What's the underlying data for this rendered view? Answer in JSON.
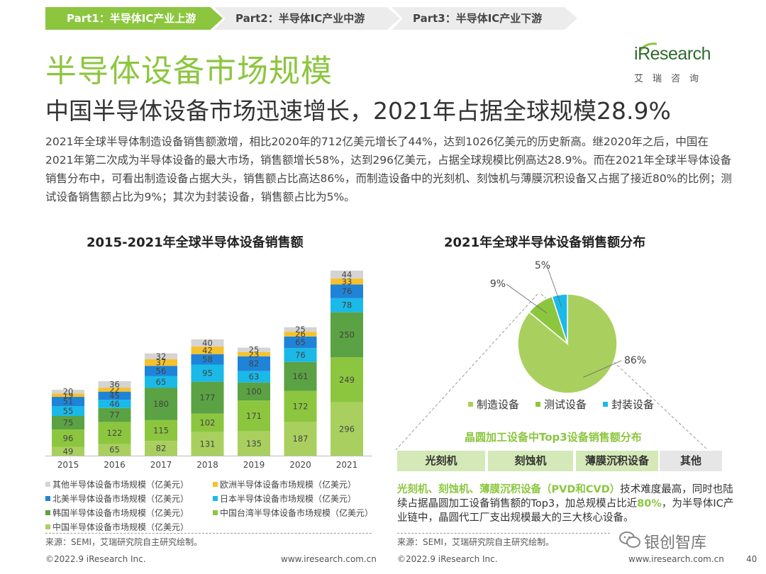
{
  "tabs": [
    {
      "label": "Part1：半导体IC产业上游",
      "active": true
    },
    {
      "label": "Part2：半导体IC产业中游",
      "active": false
    },
    {
      "label": "Part3：半导体IC产业下游",
      "active": false
    }
  ],
  "logo": {
    "brand": "Research",
    "brand_i": "i",
    "cn": "艾瑞咨询"
  },
  "title": "半导体设备市场规模",
  "subtitle": "中国半导体设备市场迅速增长，2021年占据全球规模28.9%",
  "description": "2021年全球半导体制造设备销售额激增，相比2020年的712亿美元增长了44%，达到1026亿美元的历史新高。继2020年之后，中国在2021年第二次成为半导体设备的最大市场，销售额增长58%，达到296亿美元，占据全球规模比例高达28.9%。而在2021年全球半导体设备销售分布中，可看出制造设备占据大头，销售额占比高达86%，而制造设备中的光刻机、刻蚀机与薄膜沉积设备又占据了接近80%的比例；测试设备销售额占比为9%；其次为封装设备，销售额占比为5%。",
  "bar_chart_title": "2015-2021年全球半导体设备销售额",
  "pie_chart_title": "2021年全球半导体设备销售额分布",
  "chart_data": [
    {
      "type": "bar",
      "stacked": true,
      "title": "2015-2021年全球半导体设备销售额",
      "categories": [
        "2015",
        "2016",
        "2017",
        "2018",
        "2019",
        "2020",
        "2021"
      ],
      "series": [
        {
          "name": "中国半导体设备市场规模（亿美元）",
          "color": "#a9d05f",
          "values": [
            49,
            65,
            82,
            131,
            135,
            187,
            296
          ]
        },
        {
          "name": "中国台湾半导体设备市场规模（亿美元）",
          "color": "#8cc63f",
          "values": [
            96,
            122,
            115,
            102,
            171,
            172,
            249
          ]
        },
        {
          "name": "韩国半导体设备市场规模（亿美元）",
          "color": "#5aa243",
          "values": [
            75,
            77,
            180,
            177,
            100,
            161,
            250
          ]
        },
        {
          "name": "日本半导体设备市场规模（亿美元）",
          "color": "#1ab9e8",
          "values": [
            55,
            46,
            65,
            95,
            63,
            76,
            78
          ]
        },
        {
          "name": "北美半导体设备市场规模（亿美元）",
          "color": "#1f83d8",
          "values": [
            51,
            45,
            56,
            58,
            82,
            65,
            76
          ]
        },
        {
          "name": "欧洲半导体设备市场规模（亿美元）",
          "color": "#f6c22b",
          "values": [
            19,
            22,
            37,
            42,
            23,
            26,
            33
          ]
        },
        {
          "name": "其他半导体设备市场规模（亿美元）",
          "color": "#d4d4d4",
          "values": [
            20,
            36,
            32,
            40,
            25,
            25,
            44
          ]
        }
      ]
    },
    {
      "type": "pie",
      "title": "2021年全球半导体设备销售额分布",
      "labels": [
        "制造设备",
        "测试设备",
        "封装设备"
      ],
      "values": [
        86,
        9,
        5
      ],
      "value_labels": [
        "86%",
        "9%",
        "5%"
      ],
      "colors": [
        "#a9d05f",
        "#8cc63f",
        "#1ab9e8"
      ]
    }
  ],
  "legend_order": [
    6,
    5,
    4,
    3,
    2,
    1,
    0
  ],
  "top3_title": "晶圆加工设备中Top3设备销售额分布",
  "top3_items": [
    {
      "label": "光刻机",
      "style": "green"
    },
    {
      "label": "刻蚀机",
      "style": "green"
    },
    {
      "label": "薄膜沉积设备",
      "style": "green"
    },
    {
      "label": "其他",
      "style": "grey"
    }
  ],
  "summary": {
    "highlight": "光刻机、刻蚀机、薄膜沉积设备（PVD和CVD）",
    "text1": "技术难度最高，同时也陆续占据晶圆加工设备销售额的Top3，加总规模占比近",
    "highlight2": "80%",
    "text2": "，为半导体IC产业链中，晶圆代工厂支出规模最大的三大核心设备。"
  },
  "source_left": "来源：SEMI，艾瑞研究院自主研究绘制。",
  "source_right": "来源：SEMI，艾瑞研究院自主研究绘制。",
  "footer_left_1": "©2022.9 iResearch Inc.",
  "footer_right_1": "www.iresearch.com.cn",
  "footer_left_2": "©2022.9 iResearch Inc.",
  "footer_right_2": "www.iresearch.com.cn",
  "watermark": "银创智库",
  "page_number": "40"
}
